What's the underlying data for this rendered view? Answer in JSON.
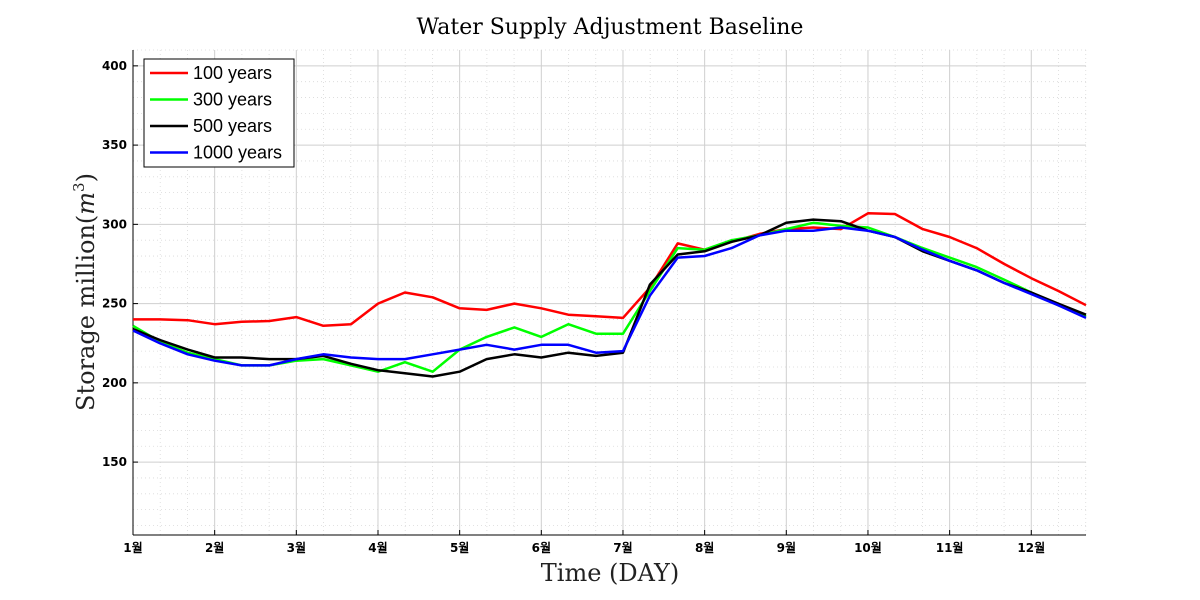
{
  "chart_data": {
    "type": "line",
    "title": "Water Supply Adjustment Baseline",
    "xlabel": "Time (DAY)",
    "ylabel_text": "Storage million",
    "ylabel_unit_base": "m",
    "ylabel_unit_exp": "3",
    "x_tick_labels": [
      "1월",
      "2월",
      "3월",
      "4월",
      "5월",
      "6월",
      "7월",
      "8월",
      "9월",
      "10월",
      "11월",
      "12월"
    ],
    "xlim": [
      1,
      12.67
    ],
    "ylim": [
      104,
      410
    ],
    "y_ticks": [
      150,
      200,
      250,
      300,
      350,
      400
    ],
    "grid": true,
    "legend_position": "top-left",
    "x": [
      1,
      1.33,
      1.67,
      2,
      2.33,
      2.67,
      3,
      3.33,
      3.67,
      4,
      4.33,
      4.67,
      5,
      5.33,
      5.67,
      6,
      6.33,
      6.67,
      7,
      7.33,
      7.67,
      8,
      8.33,
      8.67,
      9,
      9.33,
      9.67,
      10,
      10.33,
      10.67,
      11,
      11.33,
      11.67,
      12,
      12.33,
      12.67
    ],
    "series": [
      {
        "name": "100 years",
        "color": "#ff0000",
        "values": [
          240,
          240,
          239.5,
          237,
          238.5,
          239,
          241.5,
          236,
          237,
          250,
          257,
          254,
          247,
          246,
          250,
          247,
          243,
          242,
          241,
          260,
          288,
          284,
          289,
          294,
          297,
          298,
          297,
          307,
          306.5,
          297,
          292,
          285,
          275,
          266,
          258,
          249
        ]
      },
      {
        "name": "300 years",
        "color": "#00ff00",
        "values": [
          236,
          226,
          219,
          215,
          211,
          211,
          214,
          215,
          211,
          207,
          213,
          207,
          221,
          229,
          235,
          229,
          237,
          231,
          231,
          258,
          285,
          284,
          290,
          293,
          297,
          301,
          299,
          298,
          292,
          285,
          279,
          273,
          265,
          257,
          249,
          242
        ]
      },
      {
        "name": "500 years",
        "color": "#000000",
        "values": [
          234,
          227,
          221,
          216,
          216,
          215,
          215,
          217,
          212,
          208,
          206,
          204,
          207,
          215,
          218,
          216,
          219,
          217,
          219,
          262,
          281,
          283,
          289,
          293,
          301,
          303,
          302,
          296,
          292,
          283,
          277,
          271,
          263,
          257,
          250,
          243
        ]
      },
      {
        "name": "1000 years",
        "color": "#0000ff",
        "values": [
          233,
          225,
          218,
          214,
          211,
          211,
          215,
          218,
          216,
          215,
          215,
          218,
          221,
          224,
          221,
          224,
          224,
          219,
          220,
          255,
          279,
          280,
          285,
          293,
          296,
          296,
          298,
          296,
          292,
          284,
          277,
          271,
          263,
          256,
          249,
          241
        ]
      }
    ]
  }
}
